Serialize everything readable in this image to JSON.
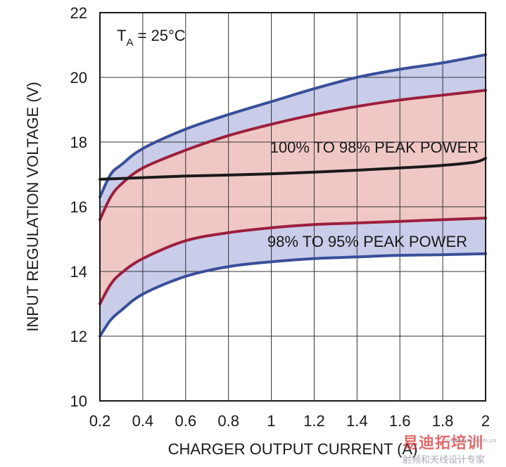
{
  "chart_data": {
    "type": "area",
    "title": "",
    "xlabel": "CHARGER OUTPUT CURRENT (A)",
    "ylabel": "INPUT REGULATION VOLTAGE (V)",
    "xlim": [
      0.2,
      2
    ],
    "ylim": [
      10,
      22
    ],
    "x_ticks": [
      0.2,
      0.4,
      0.6,
      0.8,
      1,
      1.2,
      1.4,
      1.6,
      1.8,
      2
    ],
    "x_tick_labels": [
      "0.2",
      "0.4",
      "0.6",
      "0.8",
      "1",
      "1.2",
      "1.4",
      "1.6",
      "1.8",
      "2"
    ],
    "y_ticks": [
      10,
      12,
      14,
      16,
      18,
      20,
      22
    ],
    "y_tick_labels": [
      "10",
      "12",
      "14",
      "16",
      "18",
      "20",
      "22"
    ],
    "grid": true,
    "condition_label": {
      "main": "T",
      "sub": "A",
      "rest": " = 25°C"
    },
    "annotations": [
      "100% TO 98% PEAK POWER",
      "98% TO 95% PEAK POWER"
    ],
    "colors": {
      "blue_line": "#3a4f9a",
      "red_line": "#9c1f3c",
      "black_line": "#1a1a1a",
      "blue_fill": "#c9cdea",
      "red_fill": "#efc8c5"
    },
    "series": [
      {
        "role": "upper-95",
        "x": [
          0.2,
          0.25,
          0.3,
          0.4,
          0.6,
          0.8,
          1.0,
          1.2,
          1.4,
          1.6,
          1.8,
          2.0
        ],
        "y": [
          16.3,
          17.0,
          17.3,
          17.8,
          18.4,
          18.85,
          19.25,
          19.65,
          20.0,
          20.25,
          20.45,
          20.7
        ]
      },
      {
        "role": "upper-98",
        "x": [
          0.2,
          0.25,
          0.3,
          0.4,
          0.6,
          0.8,
          1.0,
          1.2,
          1.4,
          1.6,
          1.8,
          2.0
        ],
        "y": [
          15.6,
          16.3,
          16.7,
          17.2,
          17.75,
          18.2,
          18.55,
          18.85,
          19.1,
          19.3,
          19.45,
          19.6
        ]
      },
      {
        "role": "peak-power",
        "x": [
          0.2,
          0.4,
          0.6,
          0.8,
          1.0,
          1.2,
          1.4,
          1.6,
          1.8,
          1.95,
          2.0
        ],
        "y": [
          16.85,
          16.9,
          16.95,
          16.98,
          17.02,
          17.07,
          17.13,
          17.2,
          17.28,
          17.38,
          17.5
        ]
      },
      {
        "role": "lower-98",
        "x": [
          0.2,
          0.25,
          0.3,
          0.4,
          0.6,
          0.8,
          1.0,
          1.2,
          1.4,
          1.6,
          1.8,
          2.0
        ],
        "y": [
          13.0,
          13.6,
          13.95,
          14.4,
          14.95,
          15.2,
          15.35,
          15.45,
          15.5,
          15.55,
          15.6,
          15.65
        ]
      },
      {
        "role": "lower-95",
        "x": [
          0.2,
          0.25,
          0.3,
          0.4,
          0.6,
          0.8,
          1.0,
          1.2,
          1.4,
          1.6,
          1.8,
          2.0
        ],
        "y": [
          12.0,
          12.5,
          12.8,
          13.3,
          13.85,
          14.15,
          14.3,
          14.4,
          14.45,
          14.5,
          14.52,
          14.55
        ]
      }
    ]
  },
  "watermark": {
    "title": "易迪拓培训",
    "subtitle": "射频和天线设计专家",
    "url": "mweworld.com.cn"
  }
}
